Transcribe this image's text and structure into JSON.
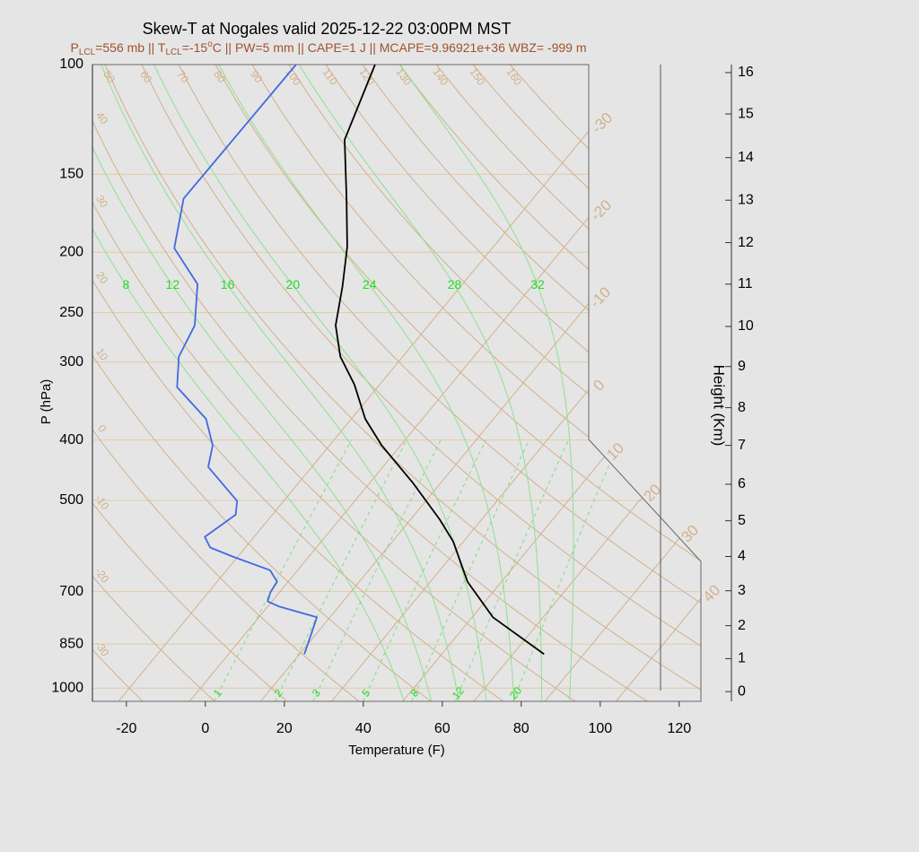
{
  "chart_data": {
    "type": "skewt",
    "title": "Skew-T at Nogales valid 2025-12-22 03:00PM MST",
    "subtitle_parts": [
      {
        "text": "P"
      },
      {
        "text": "LCL",
        "pos": "sub"
      },
      {
        "text": "=556 mb || T"
      },
      {
        "text": "LCL",
        "pos": "sub"
      },
      {
        "text": "=-15"
      },
      {
        "text": "o",
        "pos": "sup"
      },
      {
        "text": "C || PW=5 mm || CAPE=1 J || MCAPE=9.96921e+36 WBZ= -999 m"
      }
    ],
    "subtitle_color": "#a0522d",
    "xlabel": "Temperature (F)",
    "ylabel": "P (hPa)",
    "xlim": [
      -28.6,
      125.5
    ],
    "xticks": [
      -20,
      0,
      20,
      40,
      60,
      80,
      100,
      120
    ],
    "ylim": [
      1050,
      100
    ],
    "yticks": [
      100,
      150,
      200,
      250,
      300,
      400,
      500,
      700,
      850,
      1000
    ],
    "log_y": true,
    "grid": true,
    "grid_color": "#e3c9a8",
    "series": [
      {
        "color": "#000000",
        "x": [
          75.9,
          55.3,
          41.4,
          29.4,
          21.3,
          7.0,
          -8.8,
          -18.5,
          -28.4,
          -37.8,
          -45.5,
          -51.9,
          -59.0,
          -69.6,
          -82.0,
          -90.0
        ],
        "values": [
          882,
          770,
          675,
          582,
          536,
          469,
          408,
          370,
          326,
          294,
          262,
          227,
          196,
          163,
          132,
          100
        ]
      },
      {
        "color": "#4169e1",
        "x": [
          15.2,
          10.7,
          -1.1,
          -5.1,
          -6.3,
          -6.8,
          -11.0,
          -23.4,
          -30.9,
          -34.5,
          -31.3,
          -33.8,
          -48.2,
          -51.6,
          -58.8,
          -72.8,
          -78.7,
          -81.2,
          -89.1,
          -102.5,
          -110.5,
          -110.0
        ],
        "values": [
          882,
          770,
          740,
          726,
          702,
          675,
          647,
          615,
          595,
          572,
          527,
          501,
          442,
          408,
          370,
          329,
          294,
          262,
          225,
          197,
          164,
          100
        ]
      }
    ],
    "dry_adiabats": {
      "color": "#d2b08a",
      "values": [
        -30,
        -20,
        -10,
        0,
        10,
        20,
        30,
        40,
        50,
        60,
        70,
        80,
        90,
        100,
        110,
        120,
        130,
        140,
        150,
        160
      ]
    },
    "isotherms": {
      "color": "#d2b08a",
      "values": [
        -30,
        -20,
        -10,
        0,
        10,
        20,
        30,
        40
      ]
    },
    "moist_adiabats": {
      "color": "#8fe08f",
      "label_color": "#22dd22",
      "values": [
        8,
        12,
        16,
        20,
        24,
        28,
        32
      ]
    },
    "mixing_ratios": {
      "color": "#7fdc7f",
      "label_color": "#22dd22",
      "values": [
        1,
        2,
        3,
        5,
        8,
        12,
        20
      ]
    },
    "height_axis": {
      "label": "Height (Km)",
      "ticks": [
        0,
        1,
        2,
        3,
        4,
        5,
        6,
        7,
        8,
        9,
        10,
        11,
        12,
        13,
        14,
        15,
        16
      ],
      "tick_pressures": [
        1013,
        897,
        794,
        698,
        615,
        539,
        471,
        408,
        355,
        305,
        263,
        225,
        193,
        165,
        141,
        120,
        103
      ]
    }
  }
}
